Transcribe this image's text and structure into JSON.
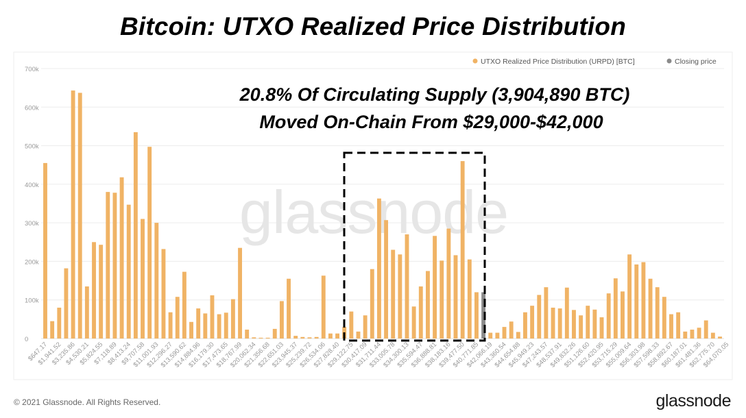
{
  "title": "Bitcoin: UTXO Realized Price Distribution",
  "annotation": {
    "line1": "20.8% Of Circulating Supply (3,904,890 BTC)",
    "line2": "Moved On-Chain From $29,000-$42,000"
  },
  "watermark": "glassnode",
  "footer": {
    "copyright": "© 2021 Glassnode. All Rights Reserved.",
    "logo": "glassnode"
  },
  "colors": {
    "bar": "#f0b365",
    "closing": "#8a8a8a",
    "grid": "#ececec",
    "box": "#000000"
  },
  "chart_data": {
    "type": "bar",
    "ylim": [
      0,
      700000
    ],
    "y_ticks": [
      {
        "value": 0,
        "label": "0"
      },
      {
        "value": 100000,
        "label": "100k"
      },
      {
        "value": 200000,
        "label": "200k"
      },
      {
        "value": 300000,
        "label": "300k"
      },
      {
        "value": 400000,
        "label": "400k"
      },
      {
        "value": 500000,
        "label": "500k"
      },
      {
        "value": 600000,
        "label": "600k"
      },
      {
        "value": 700000,
        "label": "700k"
      }
    ],
    "legend": [
      {
        "name": "UTXO Realized Price Distribution (URPD) [BTC]",
        "color": "#f0b365"
      },
      {
        "name": "Closing price",
        "color": "#8a8a8a"
      }
    ],
    "legend_position": "top-right",
    "grid": true,
    "x_tick_labels": [
      "$647.17",
      "$1,941.52",
      "$3,235.86",
      "$4,530.21",
      "$5,824.55",
      "$7,118.89",
      "$8,413.24",
      "$9,707.58",
      "$11,001.93",
      "$12,296.27",
      "$13,590.62",
      "$14,884.96",
      "$16,179.30",
      "$17,473.65",
      "$18,767.99",
      "$20,062.34",
      "$21,356.68",
      "$22,651.03",
      "$23,945.37",
      "$25,239.72",
      "$26,534.06",
      "$27,828.40",
      "$29,122.75",
      "$30,417.09",
      "$31,711.44",
      "$33,005.78",
      "$34,300.13",
      "$35,594.47",
      "$36,888.81",
      "$38,183.16",
      "$39,477.50",
      "$40,771.85",
      "$42,066.19",
      "$43,360.54",
      "$44,654.88",
      "$45,949.23",
      "$47,243.57",
      "$48,537.91",
      "$49,832.26",
      "$51,126.60",
      "$52,420.95",
      "$53,715.29",
      "$55,009.64",
      "$56,303.98",
      "$57,598.33",
      "$58,892.67",
      "$60,187.01",
      "$61,481.36",
      "$62,775.70",
      "$64,070.05"
    ],
    "values": [
      455000,
      45000,
      80000,
      182000,
      643000,
      637000,
      135000,
      250000,
      243000,
      380000,
      378000,
      418000,
      347000,
      535000,
      310000,
      497000,
      300000,
      232000,
      68000,
      108000,
      173000,
      43000,
      78000,
      65000,
      112000,
      63000,
      67000,
      102000,
      235000,
      23000,
      3000,
      2000,
      2000,
      25000,
      97000,
      155000,
      7000,
      4000,
      3000,
      4000,
      163000,
      13000,
      13000,
      30000,
      70000,
      18000,
      60000,
      180000,
      363000,
      307000,
      230000,
      218000,
      270000,
      83000,
      135000,
      175000,
      266000,
      202000,
      285000,
      216000,
      460000,
      205000,
      120000,
      120000,
      15000,
      15000,
      30000,
      44000,
      17000,
      68000,
      85000,
      113000,
      133000,
      80000,
      78000,
      132000,
      74000,
      60000,
      85000,
      75000,
      55000,
      117000,
      156000,
      122000,
      218000,
      192000,
      198000,
      155000,
      133000,
      108000,
      63000,
      68000,
      18000,
      23000,
      28000,
      47000,
      15000,
      5000
    ],
    "closing_price_bar_index": 63,
    "highlight_box_range": "$29,000-$42,000"
  }
}
